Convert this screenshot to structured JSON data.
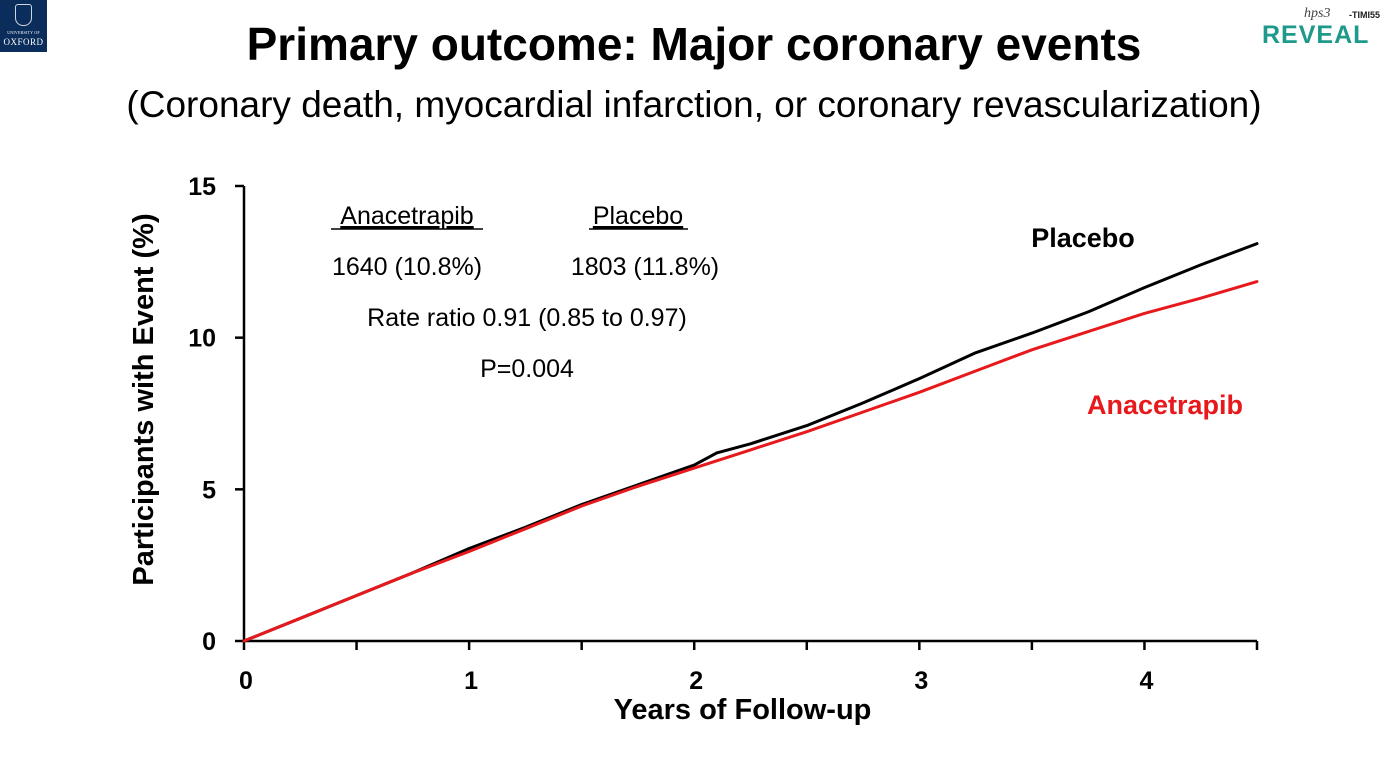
{
  "header": {
    "title": "Primary outcome: Major coronary events",
    "subtitle": "(Coronary death, myocardial infarction, or coronary revascularization)"
  },
  "logos": {
    "oxford": {
      "small_text": "UNIVERSITY OF",
      "word": "OXFORD"
    },
    "reveal": {
      "scribble": "hps3",
      "sub": "-TIMI55",
      "word": "REVEAL"
    }
  },
  "chart_data": {
    "type": "line",
    "title": "Primary outcome: Major coronary events",
    "xlabel": "Years of Follow-up",
    "ylabel": "Participants with Event (%)",
    "xlim": [
      0,
      4.5
    ],
    "ylim": [
      0,
      15
    ],
    "xticks": [
      0,
      1,
      2,
      3,
      4
    ],
    "yticks": [
      0,
      5,
      10,
      15
    ],
    "grid": false,
    "series": [
      {
        "name": "Placebo",
        "color": "#000000",
        "x": [
          0,
          0.25,
          0.5,
          0.75,
          1.0,
          1.25,
          1.5,
          1.75,
          2.0,
          2.1,
          2.25,
          2.5,
          2.75,
          3.0,
          3.25,
          3.5,
          3.75,
          4.0,
          4.25,
          4.5
        ],
        "y": [
          0,
          0.75,
          1.5,
          2.25,
          3.05,
          3.75,
          4.5,
          5.15,
          5.8,
          6.2,
          6.5,
          7.1,
          7.85,
          8.65,
          9.5,
          10.15,
          10.85,
          11.65,
          12.4,
          13.1
        ]
      },
      {
        "name": "Anacetrapib",
        "color": "#e8191c",
        "x": [
          0,
          0.25,
          0.5,
          0.75,
          1.0,
          1.25,
          1.5,
          1.75,
          2.0,
          2.25,
          2.5,
          2.75,
          3.0,
          3.25,
          3.5,
          3.75,
          4.0,
          4.25,
          4.5
        ],
        "y": [
          0,
          0.75,
          1.5,
          2.25,
          2.95,
          3.7,
          4.45,
          5.1,
          5.7,
          6.3,
          6.9,
          7.55,
          8.2,
          8.9,
          9.6,
          10.2,
          10.8,
          11.3,
          11.85
        ]
      }
    ],
    "series_labels": {
      "placebo": "Placebo",
      "anacetrapib": "Anacetrapib"
    },
    "annotations": {
      "col1_header": "Anacetrapib",
      "col2_header": "Placebo",
      "col1_value": "1640 (10.8%)",
      "col2_value": "1803 (11.8%)",
      "rate_ratio": "Rate ratio 0.91 (0.85 to 0.97)",
      "p_value": "P=0.004"
    }
  }
}
